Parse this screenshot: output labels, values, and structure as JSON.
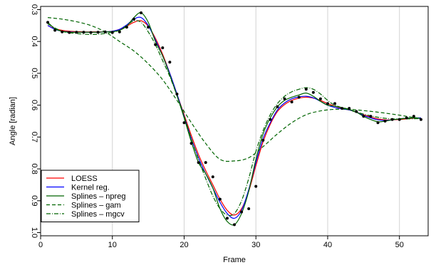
{
  "chart_data": {
    "type": "line",
    "title": "",
    "xlabel": "Frame",
    "ylabel": "Angle [radian]",
    "xlim": [
      0,
      54
    ],
    "ylim": [
      0.29,
      1.01
    ],
    "y_reversed": true,
    "y_tick_labels_rotated": true,
    "grid": "vertical lines at x ticks",
    "legend_position": "bottom-left",
    "x_ticks": [
      0,
      10,
      20,
      30,
      40,
      50
    ],
    "y_ticks": [
      0.3,
      0.4,
      0.5,
      0.6,
      0.7,
      0.8,
      0.9,
      1.0
    ],
    "x_tick_labels": [
      "0",
      "10",
      "20",
      "30",
      "40",
      "50"
    ],
    "y_tick_labels": [
      "0.3",
      "0.4",
      "0.5",
      "0.6",
      "0.7",
      "0.8",
      "0.9",
      "1.0"
    ],
    "points": {
      "x": [
        1,
        2,
        3,
        4,
        5,
        6,
        7,
        8,
        9,
        10,
        11,
        12,
        13,
        14,
        15,
        16,
        17,
        18,
        19,
        20,
        21,
        22,
        23,
        24,
        25,
        26,
        27,
        28,
        29,
        30,
        31,
        32,
        33,
        34,
        35,
        36,
        37,
        38,
        39,
        40,
        41,
        42,
        43,
        44,
        45,
        46,
        47,
        48,
        49,
        50,
        51,
        52,
        53
      ],
      "y": [
        0.34,
        0.365,
        0.37,
        0.372,
        0.371,
        0.371,
        0.372,
        0.371,
        0.37,
        0.372,
        0.37,
        0.355,
        0.33,
        0.31,
        0.355,
        0.41,
        0.42,
        0.465,
        0.565,
        0.655,
        0.72,
        0.78,
        0.78,
        0.825,
        0.895,
        0.955,
        0.975,
        0.935,
        0.925,
        0.855,
        0.71,
        0.645,
        0.605,
        0.58,
        0.59,
        0.575,
        0.55,
        0.56,
        0.58,
        0.595,
        0.595,
        0.61,
        0.61,
        0.62,
        0.635,
        0.635,
        0.655,
        0.65,
        0.645,
        0.645,
        0.64,
        0.635,
        0.645
      ]
    },
    "series": [
      {
        "name": "LOESS",
        "color": "#ff0000",
        "dash": "solid",
        "x": [
          1,
          2,
          3,
          4,
          5,
          6,
          7,
          8,
          9,
          10,
          11,
          12,
          13,
          14,
          15,
          16,
          17,
          18,
          19,
          20,
          21,
          22,
          23,
          24,
          25,
          26,
          27,
          28,
          29,
          30,
          31,
          32,
          33,
          34,
          35,
          36,
          37,
          38,
          39,
          40,
          41,
          42,
          43,
          44,
          45,
          46,
          47,
          48,
          49,
          50,
          51,
          52,
          53
        ],
        "y": [
          0.35,
          0.36,
          0.365,
          0.368,
          0.369,
          0.37,
          0.37,
          0.37,
          0.37,
          0.368,
          0.362,
          0.352,
          0.34,
          0.335,
          0.352,
          0.39,
          0.44,
          0.5,
          0.565,
          0.63,
          0.695,
          0.755,
          0.805,
          0.85,
          0.895,
          0.93,
          0.945,
          0.925,
          0.87,
          0.79,
          0.715,
          0.66,
          0.62,
          0.598,
          0.585,
          0.578,
          0.575,
          0.578,
          0.585,
          0.595,
          0.603,
          0.61,
          0.615,
          0.622,
          0.63,
          0.637,
          0.643,
          0.646,
          0.646,
          0.645,
          0.643,
          0.641,
          0.64
        ]
      },
      {
        "name": "Kernel reg.",
        "color": "#0000ff",
        "dash": "solid",
        "x": [
          1,
          2,
          3,
          4,
          5,
          6,
          7,
          8,
          9,
          10,
          11,
          12,
          13,
          14,
          15,
          16,
          17,
          18,
          19,
          20,
          21,
          22,
          23,
          24,
          25,
          26,
          27,
          28,
          29,
          30,
          31,
          32,
          33,
          34,
          35,
          36,
          37,
          38,
          39,
          40,
          41,
          42,
          43,
          44,
          45,
          46,
          47,
          48,
          49,
          50,
          51,
          52,
          53
        ],
        "y": [
          0.35,
          0.362,
          0.368,
          0.37,
          0.371,
          0.371,
          0.371,
          0.371,
          0.37,
          0.368,
          0.362,
          0.348,
          0.33,
          0.325,
          0.35,
          0.395,
          0.445,
          0.5,
          0.565,
          0.635,
          0.705,
          0.765,
          0.815,
          0.86,
          0.905,
          0.94,
          0.955,
          0.93,
          0.865,
          0.78,
          0.705,
          0.655,
          0.615,
          0.593,
          0.58,
          0.574,
          0.572,
          0.577,
          0.588,
          0.6,
          0.607,
          0.612,
          0.615,
          0.622,
          0.632,
          0.64,
          0.646,
          0.648,
          0.646,
          0.643,
          0.641,
          0.64,
          0.64
        ]
      },
      {
        "name": "Splines – npreg",
        "color": "#006400",
        "dash": "solid",
        "x": [
          1,
          2,
          3,
          4,
          5,
          6,
          7,
          8,
          9,
          10,
          11,
          12,
          13,
          14,
          15,
          16,
          17,
          18,
          19,
          20,
          21,
          22,
          23,
          24,
          25,
          26,
          27,
          28,
          29,
          30,
          31,
          32,
          33,
          34,
          35,
          36,
          37,
          38,
          39,
          40,
          41,
          42,
          43,
          44,
          45,
          46,
          47,
          48,
          49,
          50,
          51,
          52,
          53
        ],
        "y": [
          0.34,
          0.36,
          0.368,
          0.371,
          0.371,
          0.371,
          0.371,
          0.371,
          0.37,
          0.369,
          0.365,
          0.352,
          0.325,
          0.31,
          0.34,
          0.4,
          0.445,
          0.505,
          0.57,
          0.64,
          0.715,
          0.78,
          0.815,
          0.86,
          0.925,
          0.965,
          0.975,
          0.94,
          0.87,
          0.77,
          0.69,
          0.64,
          0.605,
          0.585,
          0.575,
          0.568,
          0.562,
          0.572,
          0.588,
          0.6,
          0.603,
          0.608,
          0.613,
          0.622,
          0.635,
          0.645,
          0.652,
          0.65,
          0.646,
          0.643,
          0.641,
          0.64,
          0.642
        ]
      },
      {
        "name": "Splines – gam",
        "color": "#006400",
        "dash": "5,3",
        "x": [
          1,
          3,
          5,
          7,
          9,
          11,
          13,
          15,
          17,
          19,
          21,
          23,
          25,
          27,
          29,
          31,
          33,
          35,
          37,
          39,
          41,
          43,
          45,
          47,
          49,
          51,
          53
        ],
        "y": [
          0.325,
          0.33,
          0.338,
          0.35,
          0.37,
          0.4,
          0.43,
          0.47,
          0.52,
          0.585,
          0.655,
          0.72,
          0.77,
          0.775,
          0.765,
          0.73,
          0.69,
          0.655,
          0.63,
          0.618,
          0.613,
          0.613,
          0.617,
          0.622,
          0.628,
          0.635,
          0.642
        ]
      },
      {
        "name": "Splines – mgcv",
        "color": "#006400",
        "dash": "6,2,1,2",
        "x": [
          1,
          3,
          5,
          7,
          9,
          11,
          12,
          13,
          14,
          15,
          16,
          17,
          18,
          19,
          20,
          21,
          22,
          23,
          24,
          25,
          26,
          27,
          28,
          29,
          30,
          31,
          32,
          33,
          34,
          35,
          36,
          37,
          38,
          39,
          40,
          41,
          43,
          45,
          47,
          49,
          51,
          53
        ],
        "y": [
          0.345,
          0.368,
          0.375,
          0.378,
          0.375,
          0.365,
          0.35,
          0.335,
          0.34,
          0.37,
          0.41,
          0.46,
          0.51,
          0.57,
          0.635,
          0.705,
          0.77,
          0.83,
          0.885,
          0.925,
          0.945,
          0.94,
          0.9,
          0.83,
          0.745,
          0.68,
          0.63,
          0.595,
          0.572,
          0.558,
          0.55,
          0.545,
          0.55,
          0.565,
          0.585,
          0.6,
          0.615,
          0.628,
          0.638,
          0.643,
          0.643,
          0.642
        ]
      }
    ]
  }
}
